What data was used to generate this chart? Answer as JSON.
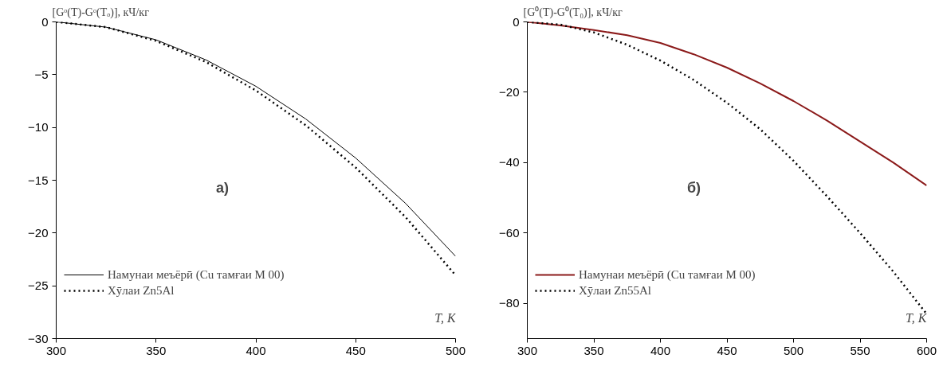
{
  "chart_data": [
    {
      "type": "line",
      "ylabel": "[Gᵒ(T)-Gᵒ(Tₒ)], кЧ/кг",
      "xlabel": "T, К",
      "annotations": [
        "а)"
      ],
      "x": [
        300,
        325,
        350,
        375,
        400,
        425,
        450,
        475,
        500
      ],
      "series": [
        {
          "name": "Намунаи меъёрӣ (Cu тамғаи М 00)",
          "color": "#000000",
          "line_style": "solid",
          "values": [
            0,
            -0.5,
            -1.7,
            -3.6,
            -6.1,
            -9.2,
            -12.9,
            -17.2,
            -22.2
          ]
        },
        {
          "name": "Хӯлаи Zn5Al",
          "color": "#000000",
          "line_style": "dotted",
          "values": [
            0,
            -0.5,
            -1.8,
            -3.8,
            -6.5,
            -9.8,
            -13.8,
            -18.5,
            -24
          ]
        }
      ],
      "xlim": [
        300,
        500
      ],
      "xticks": [
        300,
        350,
        400,
        450,
        500
      ],
      "ylim": [
        -30,
        0
      ],
      "yticks": [
        -30,
        -25,
        -20,
        -15,
        -10,
        -5,
        0
      ],
      "grid": false,
      "legend": "bottom left",
      "marker": "none"
    },
    {
      "type": "line",
      "ylabel": "[G⁰(T)-G⁰(T₀)], кЧ/кг",
      "xlabel": "T, K",
      "annotations": [
        "б)"
      ],
      "x": [
        300,
        325,
        350,
        375,
        400,
        425,
        450,
        475,
        500,
        525,
        550,
        575,
        600
      ],
      "series": [
        {
          "name": "Намунаи меъёрӣ (Cu тамғаи М 00)",
          "color": "#8b1a1a",
          "line_style": "solid",
          "values": [
            0,
            -1,
            -2.3,
            -3.8,
            -6,
            -9.2,
            -13,
            -17.5,
            -22.5,
            -28,
            -34,
            -40,
            -46.5
          ]
        },
        {
          "name": "Хӯлаи Zn55Al",
          "color": "#000000",
          "line_style": "dotted",
          "values": [
            0,
            -0.8,
            -3,
            -6.5,
            -11,
            -16.5,
            -23,
            -30.5,
            -39.5,
            -49.5,
            -60,
            -71,
            -83
          ]
        }
      ],
      "xlim": [
        300,
        600
      ],
      "xticks": [
        300,
        350,
        400,
        450,
        500,
        550,
        600
      ],
      "ylim": [
        -90,
        0
      ],
      "yticks": [
        -80,
        -60,
        -40,
        -20,
        0
      ],
      "grid": false,
      "legend": "bottom left",
      "marker": "none"
    }
  ]
}
